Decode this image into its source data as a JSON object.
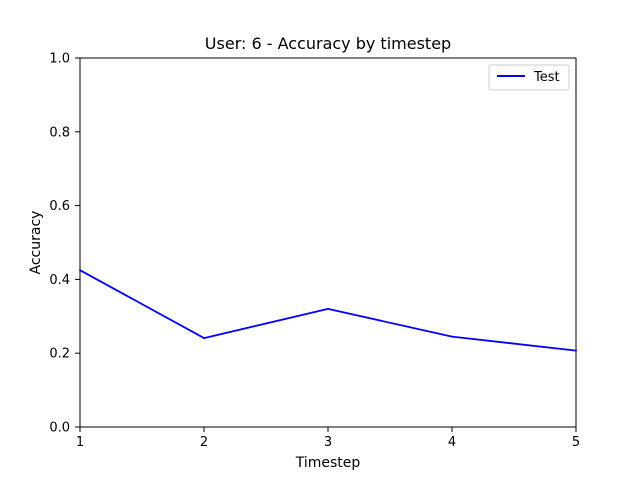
{
  "chart_data": {
    "type": "line",
    "title": "User: 6 - Accuracy by timestep",
    "xlabel": "Timestep",
    "ylabel": "Accuracy",
    "x": [
      1,
      2,
      3,
      4,
      5
    ],
    "xlim": [
      1,
      5
    ],
    "ylim": [
      0,
      1
    ],
    "x_ticks": [
      "1",
      "2",
      "3",
      "4",
      "5"
    ],
    "y_ticks": [
      "0.0",
      "0.2",
      "0.4",
      "0.6",
      "0.8",
      "1.0"
    ],
    "grid": false,
    "legend_position": "top-right",
    "series": [
      {
        "name": "Test",
        "color": "#0000ff",
        "values": [
          0.425,
          0.241,
          0.32,
          0.245,
          0.207
        ]
      }
    ]
  }
}
